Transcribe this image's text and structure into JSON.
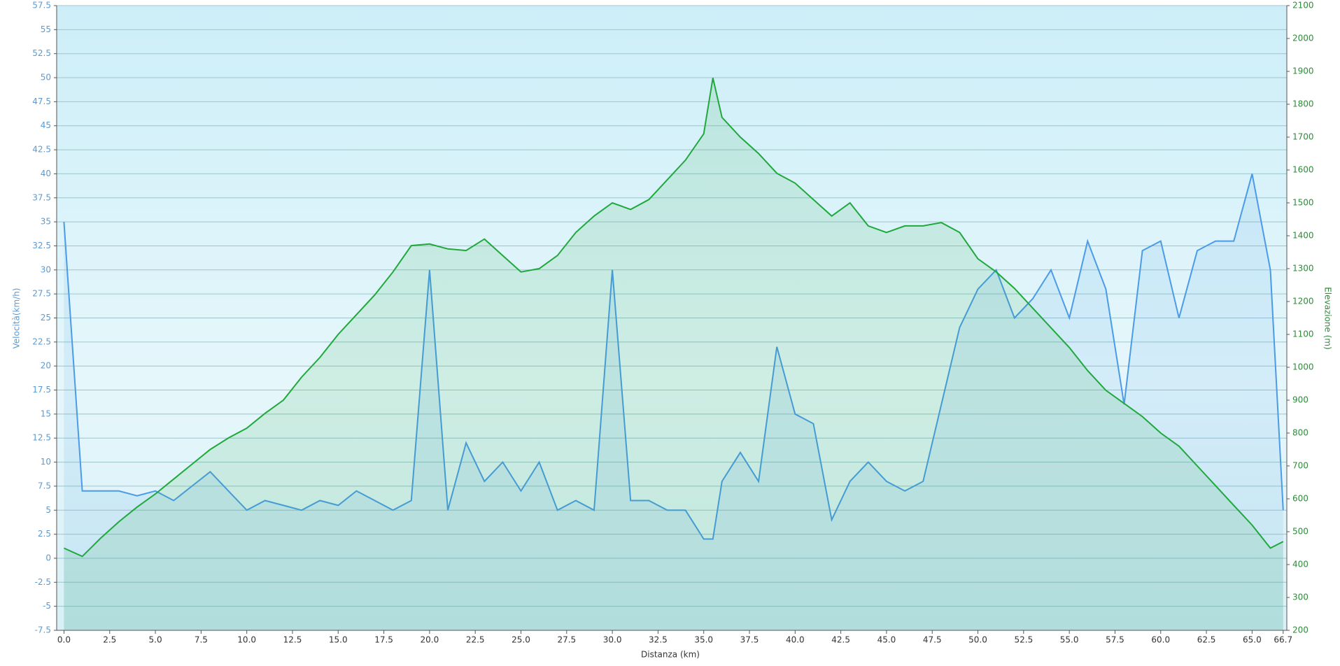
{
  "chart_data": {
    "type": "line",
    "x_label": "Distanza  (km)",
    "y_label": "Velocità(km/h)",
    "y2_label": "Elevazione (m)",
    "x": [
      0,
      1,
      2,
      3,
      4,
      5,
      6,
      7,
      8,
      9,
      10,
      11,
      12,
      13,
      14,
      15,
      16,
      17,
      18,
      19,
      20,
      21,
      22,
      23,
      24,
      25,
      26,
      27,
      28,
      29,
      30,
      31,
      32,
      33,
      34,
      35,
      35.5,
      36,
      37,
      38,
      39,
      40,
      41,
      42,
      43,
      44,
      45,
      46,
      47,
      48,
      49,
      50,
      51,
      52,
      53,
      54,
      55,
      56,
      57,
      58,
      59,
      60,
      61,
      62,
      63,
      64,
      65,
      66,
      66.7
    ],
    "series": [
      {
        "color": "#4a9be8",
        "axis": "y",
        "values": [
          35,
          7,
          7,
          7,
          6.5,
          7,
          6,
          7.5,
          9,
          7,
          5,
          6,
          5.5,
          5,
          6,
          5.5,
          7,
          6,
          5,
          6,
          30,
          5,
          12,
          8,
          10,
          7,
          10,
          5,
          6,
          5,
          30,
          6,
          6,
          5,
          5,
          2,
          2,
          8,
          11,
          8,
          22,
          15,
          14,
          4,
          8,
          10,
          8,
          7,
          8,
          16,
          24,
          28,
          30,
          25,
          27,
          30,
          25,
          33,
          28,
          16,
          32,
          33,
          25,
          32,
          33,
          33,
          40,
          30,
          5
        ]
      },
      {
        "color": "#1fa83c",
        "axis": "y2",
        "values": [
          450,
          425,
          480,
          530,
          575,
          615,
          660,
          705,
          750,
          785,
          815,
          860,
          900,
          970,
          1030,
          1100,
          1160,
          1220,
          1290,
          1370,
          1375,
          1360,
          1355,
          1390,
          1340,
          1290,
          1300,
          1340,
          1410,
          1460,
          1500,
          1480,
          1510,
          1570,
          1630,
          1710,
          1880,
          1760,
          1700,
          1650,
          1590,
          1560,
          1510,
          1460,
          1500,
          1430,
          1410,
          1430,
          1430,
          1440,
          1410,
          1330,
          1290,
          1240,
          1180,
          1120,
          1060,
          990,
          930,
          890,
          850,
          800,
          760,
          700,
          640,
          580,
          520,
          450,
          470
        ]
      }
    ],
    "xlim": [
      -0.4,
      66.9
    ],
    "xticks": [
      {
        "value": 0,
        "label": "0.0"
      },
      2.5,
      {
        "value": 5,
        "label": "5.0"
      },
      7.5,
      {
        "value": 10,
        "label": "10.0"
      },
      12.5,
      {
        "value": 15,
        "label": "15.0"
      },
      17.5,
      {
        "value": 20,
        "label": "20.0"
      },
      22.5,
      {
        "value": 25,
        "label": "25.0"
      },
      27.5,
      {
        "value": 30,
        "label": "30.0"
      },
      32.5,
      {
        "value": 35,
        "label": "35.0"
      },
      37.5,
      {
        "value": 40,
        "label": "40.0"
      },
      42.5,
      {
        "value": 45,
        "label": "45.0"
      },
      47.5,
      {
        "value": 50,
        "label": "50.0"
      },
      52.5,
      {
        "value": 55,
        "label": "55.0"
      },
      57.5,
      {
        "value": 60,
        "label": "60.0"
      },
      62.5,
      {
        "value": 65,
        "label": "65.0"
      },
      66.7
    ],
    "ylim": [
      -7.5,
      57.5
    ],
    "yticks": [
      -7.5,
      -5,
      -2.5,
      0,
      2.5,
      5,
      7.5,
      10,
      12.5,
      15,
      17.5,
      20,
      22.5,
      25,
      27.5,
      30,
      32.5,
      35,
      37.5,
      40,
      42.5,
      45,
      47.5,
      50,
      52.5,
      55,
      57.5
    ],
    "y2lim": [
      200,
      2100
    ],
    "y2ticks": [
      200,
      300,
      400,
      500,
      600,
      700,
      800,
      900,
      1000,
      1100,
      1200,
      1300,
      1400,
      1500,
      1600,
      1700,
      1800,
      1900,
      2000,
      2100
    ],
    "grid": true
  }
}
